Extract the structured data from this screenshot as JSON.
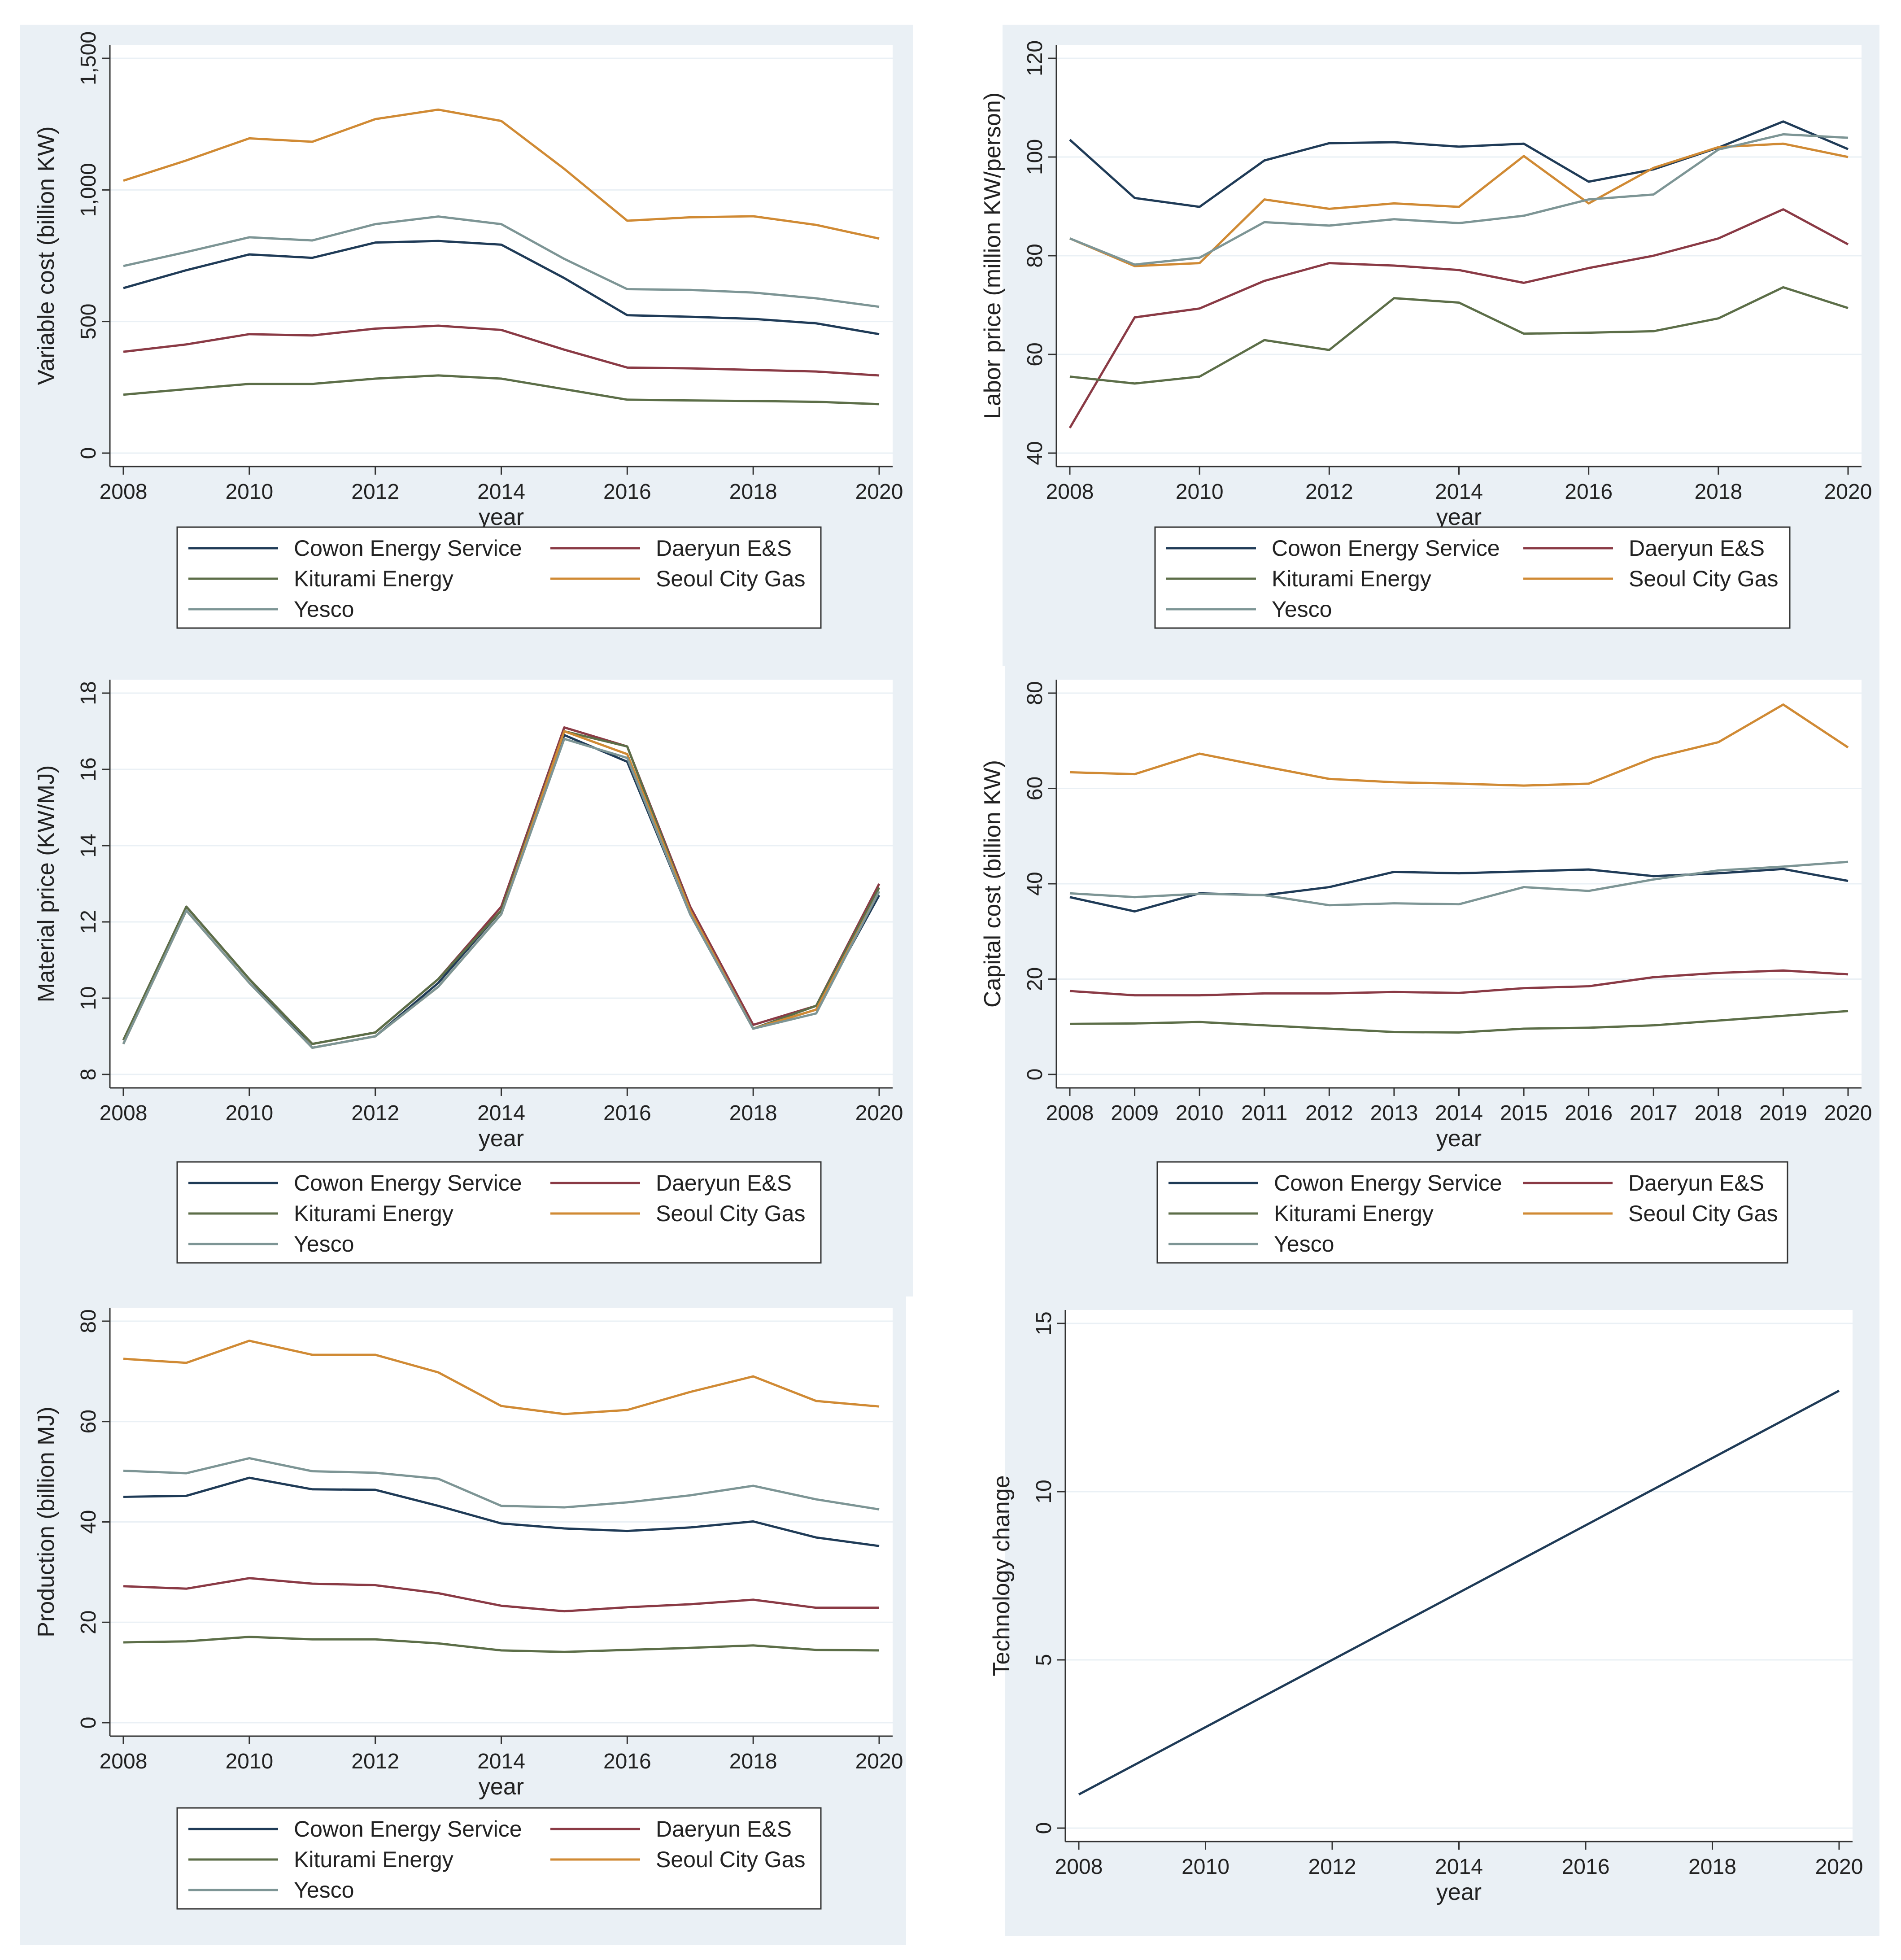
{
  "chart_data": [
    {
      "type": "line",
      "ylabel": "Variable cost (billion KW)",
      "xlabel": "year",
      "x": [
        2008,
        2009,
        2010,
        2011,
        2012,
        2013,
        2014,
        2015,
        2016,
        2017,
        2018,
        2019,
        2020
      ],
      "xticks": [
        "2008",
        "2010",
        "2012",
        "2014",
        "2016",
        "2018",
        "2020"
      ],
      "xlim": [
        2008,
        2020
      ],
      "yticks": [
        "0",
        "500",
        "1,000",
        "1,500"
      ],
      "ylim": [
        0,
        1500
      ],
      "series": [
        {
          "name": "Cowon Energy Service",
          "values": [
            627,
            695,
            755,
            742,
            800,
            806,
            792,
            665,
            524,
            518,
            510,
            493,
            452
          ]
        },
        {
          "name": "Daeryun E&S",
          "values": [
            385,
            413,
            452,
            447,
            473,
            484,
            468,
            393,
            325,
            322,
            316,
            310,
            295
          ]
        },
        {
          "name": "Kiturami Energy",
          "values": [
            222,
            243,
            263,
            263,
            283,
            295,
            283,
            243,
            203,
            200,
            198,
            195,
            186
          ]
        },
        {
          "name": "Seoul City Gas",
          "values": [
            1035,
            1112,
            1196,
            1183,
            1269,
            1305,
            1262,
            1080,
            883,
            896,
            900,
            867,
            815
          ]
        },
        {
          "name": "Yesco",
          "values": [
            711,
            764,
            820,
            808,
            870,
            899,
            870,
            738,
            623,
            620,
            610,
            588,
            556
          ]
        }
      ]
    },
    {
      "type": "line",
      "ylabel": "Labor price (million KW/person)",
      "xlabel": "year",
      "x": [
        2008,
        2009,
        2010,
        2011,
        2012,
        2013,
        2014,
        2015,
        2016,
        2017,
        2018,
        2019,
        2020
      ],
      "xticks": [
        "2008",
        "2010",
        "2012",
        "2014",
        "2016",
        "2018",
        "2020"
      ],
      "xlim": [
        2008,
        2020
      ],
      "yticks": [
        "40",
        "60",
        "80",
        "100",
        "120"
      ],
      "ylim": [
        40,
        120
      ],
      "series": [
        {
          "name": "Cowon Energy Service",
          "values": [
            103.5,
            91.7,
            89.9,
            99.3,
            102.8,
            103.0,
            102.1,
            102.7,
            95.0,
            97.5,
            101.9,
            107.2,
            101.6
          ]
        },
        {
          "name": "Daeryun E&S",
          "values": [
            45.1,
            67.5,
            69.3,
            74.9,
            78.5,
            78.0,
            77.1,
            74.5,
            77.5,
            80.0,
            83.5,
            89.4,
            82.3
          ]
        },
        {
          "name": "Kiturami Energy",
          "values": [
            55.5,
            54.1,
            55.5,
            62.9,
            60.9,
            71.4,
            70.5,
            64.2,
            64.4,
            64.7,
            67.3,
            73.6,
            69.4
          ]
        },
        {
          "name": "Seoul City Gas",
          "values": [
            83.5,
            77.9,
            78.5,
            91.4,
            89.5,
            90.6,
            89.9,
            100.2,
            90.6,
            97.8,
            102.0,
            102.7,
            100.0
          ]
        },
        {
          "name": "Yesco",
          "values": [
            83.5,
            78.2,
            79.6,
            86.8,
            86.1,
            87.4,
            86.6,
            88.1,
            91.4,
            92.4,
            101.5,
            104.6,
            103.9
          ]
        }
      ]
    },
    {
      "type": "line",
      "ylabel": "Material price (KW/MJ)",
      "xlabel": "year",
      "x": [
        2008,
        2009,
        2010,
        2011,
        2012,
        2013,
        2014,
        2015,
        2016,
        2017,
        2018,
        2019,
        2020
      ],
      "xticks": [
        "2008",
        "2010",
        "2012",
        "2014",
        "2016",
        "2018",
        "2020"
      ],
      "xlim": [
        2008,
        2020
      ],
      "yticks": [
        "8",
        "10",
        "12",
        "14",
        "16",
        "18"
      ],
      "ylim": [
        8,
        18
      ],
      "series": [
        {
          "name": "Cowon Energy Service",
          "values": [
            8.8,
            12.4,
            10.5,
            8.7,
            9.0,
            10.4,
            12.3,
            16.9,
            16.2,
            12.2,
            9.2,
            9.7,
            12.7
          ]
        },
        {
          "name": "Daeryun E&S",
          "values": [
            8.9,
            12.4,
            10.5,
            8.8,
            9.1,
            10.5,
            12.4,
            17.1,
            16.6,
            12.4,
            9.3,
            9.8,
            13.0
          ]
        },
        {
          "name": "Kiturami Energy",
          "values": [
            8.9,
            12.4,
            10.5,
            8.8,
            9.1,
            10.5,
            12.3,
            17.0,
            16.6,
            12.3,
            9.2,
            9.8,
            12.9
          ]
        },
        {
          "name": "Seoul City Gas",
          "values": [
            8.8,
            12.3,
            10.4,
            8.7,
            9.0,
            10.3,
            12.2,
            17.0,
            16.4,
            12.3,
            9.2,
            9.7,
            12.8
          ]
        },
        {
          "name": "Yesco",
          "values": [
            8.8,
            12.3,
            10.4,
            8.7,
            9.0,
            10.3,
            12.2,
            16.8,
            16.3,
            12.2,
            9.2,
            9.6,
            12.8
          ]
        }
      ]
    },
    {
      "type": "line",
      "ylabel": "Capital cost (billion KW)",
      "xlabel": "year",
      "x": [
        2008,
        2009,
        2010,
        2011,
        2012,
        2013,
        2014,
        2015,
        2016,
        2017,
        2018,
        2019,
        2020
      ],
      "xticks": [
        "2008",
        "2009",
        "2010",
        "2011",
        "2012",
        "2013",
        "2014",
        "2015",
        "2016",
        "2017",
        "2018",
        "2019",
        "2020"
      ],
      "xlim": [
        2008,
        2020
      ],
      "yticks": [
        "0",
        "20",
        "40",
        "60",
        "80"
      ],
      "ylim": [
        0,
        80
      ],
      "series": [
        {
          "name": "Cowon Energy Service",
          "values": [
            37.2,
            34.2,
            38.0,
            37.6,
            39.3,
            42.5,
            42.2,
            42.6,
            43.0,
            41.6,
            42.2,
            43.1,
            40.6
          ]
        },
        {
          "name": "Daeryun E&S",
          "values": [
            17.5,
            16.6,
            16.6,
            17.0,
            17.0,
            17.3,
            17.1,
            18.1,
            18.5,
            20.4,
            21.3,
            21.8,
            21.0
          ]
        },
        {
          "name": "Kiturami Energy",
          "values": [
            10.6,
            10.7,
            11.0,
            10.3,
            9.6,
            8.9,
            8.8,
            9.6,
            9.8,
            10.3,
            11.3,
            12.3,
            13.3
          ]
        },
        {
          "name": "Seoul City Gas",
          "values": [
            63.4,
            63.0,
            67.3,
            64.6,
            62.0,
            61.3,
            61.0,
            60.6,
            61.0,
            66.4,
            69.7,
            77.6,
            68.6
          ]
        },
        {
          "name": "Yesco",
          "values": [
            38.0,
            37.2,
            37.9,
            37.6,
            35.5,
            35.9,
            35.7,
            39.3,
            38.5,
            40.9,
            42.8,
            43.6,
            44.6
          ]
        }
      ]
    },
    {
      "type": "line",
      "ylabel": "Production (billion MJ)",
      "xlabel": "year",
      "x": [
        2008,
        2009,
        2010,
        2011,
        2012,
        2013,
        2014,
        2015,
        2016,
        2017,
        2018,
        2019,
        2020
      ],
      "xticks": [
        "2008",
        "2010",
        "2012",
        "2014",
        "2016",
        "2018",
        "2020"
      ],
      "xlim": [
        2008,
        2020
      ],
      "yticks": [
        "0",
        "20",
        "40",
        "60",
        "80"
      ],
      "ylim": [
        0,
        80
      ],
      "series": [
        {
          "name": "Cowon Energy Service",
          "values": [
            45.0,
            45.2,
            48.8,
            46.5,
            46.4,
            43.2,
            39.7,
            38.7,
            38.2,
            38.9,
            40.1,
            36.9,
            35.2
          ]
        },
        {
          "name": "Daeryun E&S",
          "values": [
            27.2,
            26.7,
            28.8,
            27.7,
            27.4,
            25.8,
            23.3,
            22.2,
            23.0,
            23.6,
            24.5,
            22.9,
            22.9
          ]
        },
        {
          "name": "Kiturami Energy",
          "values": [
            16.0,
            16.2,
            17.1,
            16.6,
            16.6,
            15.8,
            14.4,
            14.1,
            14.5,
            14.9,
            15.4,
            14.5,
            14.4
          ]
        },
        {
          "name": "Seoul City Gas",
          "values": [
            72.5,
            71.7,
            76.1,
            73.3,
            73.3,
            69.8,
            63.1,
            61.5,
            62.3,
            65.9,
            69.0,
            64.1,
            63.0
          ]
        },
        {
          "name": "Yesco",
          "values": [
            50.2,
            49.7,
            52.7,
            50.1,
            49.8,
            48.6,
            43.2,
            42.9,
            43.9,
            45.3,
            47.2,
            44.5,
            42.5
          ]
        }
      ]
    },
    {
      "type": "line",
      "ylabel": "Technology change",
      "xlabel": "year",
      "x": [
        2008,
        2020
      ],
      "xticks": [
        "2008",
        "2010",
        "2012",
        "2014",
        "2016",
        "2018",
        "2020"
      ],
      "xlim": [
        2008,
        2020
      ],
      "yticks": [
        "0",
        "5",
        "10",
        "15"
      ],
      "ylim": [
        0,
        15
      ],
      "series": [
        {
          "name": "",
          "values": [
            1,
            13
          ]
        }
      ]
    }
  ],
  "colors": {
    "Cowon Energy Service": "#1f3b57",
    "Daeryun E&S": "#8a3a45",
    "Kiturami Energy": "#5c6e48",
    "Seoul City Gas": "#d08a34",
    "Yesco": "#7d9595",
    "single": "#1f3b57",
    "panel_bg": "#eaf0f5",
    "plot_bg": "#ffffff",
    "grid": "#eaf0f5"
  }
}
